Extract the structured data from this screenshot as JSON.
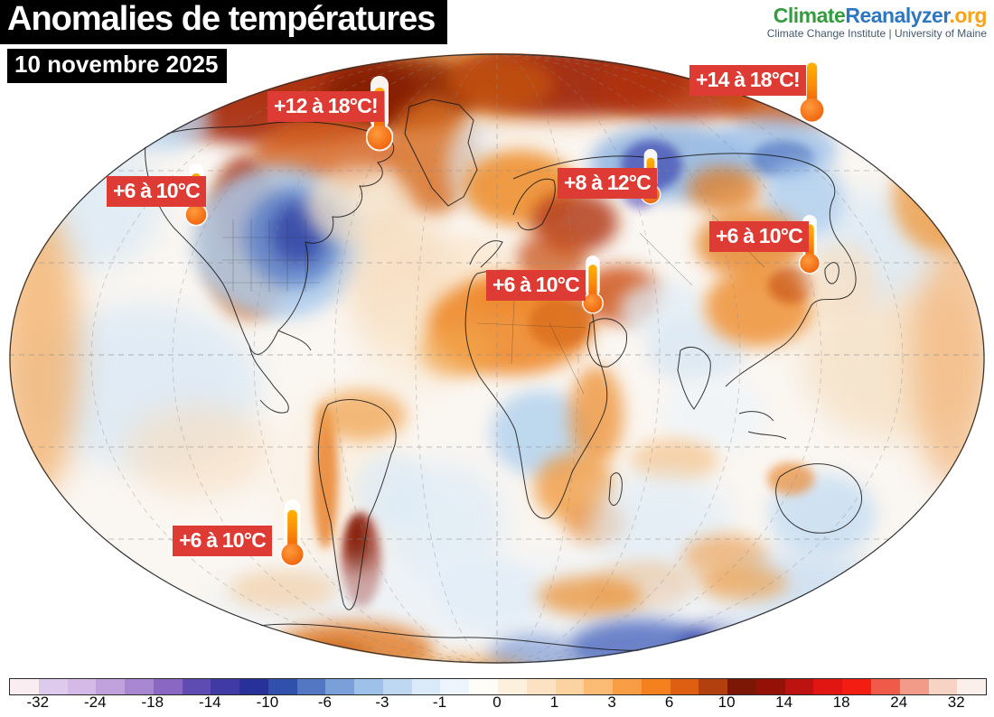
{
  "header": {
    "title": "Anomalies de températures",
    "date": "10 novembre 2025"
  },
  "logo": {
    "brand_climate": "Climate",
    "brand_reanalyzer": "Reanalyzer",
    "brand_org": ".org",
    "subtitle": "Climate Change Institute | University of Maine",
    "color_climate": "#359b3f",
    "color_reanalyzer": "#2d77c2",
    "color_org": "#f7a21b"
  },
  "map": {
    "badge_color": "#dd3b33",
    "callouts": [
      {
        "region": "north-america-arctic",
        "label": "+12 à 18°C!"
      },
      {
        "region": "northeast-siberia",
        "label": "+14 à 18°C!"
      },
      {
        "region": "western-north-america",
        "label": "+6 à 10°C"
      },
      {
        "region": "western-russia",
        "label": "+8 à 12°C"
      },
      {
        "region": "east-asia",
        "label": "+6 à 10°C"
      },
      {
        "region": "northeast-africa",
        "label": "+6 à 10°C"
      },
      {
        "region": "southern-ocean",
        "label": "+6 à 10°C"
      }
    ]
  },
  "colorbar": {
    "unit": "°C",
    "labels": [
      "-32",
      "-24",
      "-18",
      "-14",
      "-10",
      "-6",
      "-3",
      "-1",
      "0",
      "1",
      "3",
      "6",
      "10",
      "14",
      "18",
      "24",
      "32"
    ],
    "segments": [
      "#f9edf1",
      "#decaed",
      "#d5b9e6",
      "#c0a1db",
      "#a787d0",
      "#8a67c2",
      "#5f4cb3",
      "#3f3aa4",
      "#28309a",
      "#3050ac",
      "#5477c4",
      "#7b9fd9",
      "#9ec1ea",
      "#bfd8f2",
      "#dbeaf8",
      "#edf4fb",
      "#fdfcf7",
      "#fdf0dd",
      "#fce2c2",
      "#fbd3a0",
      "#fabc74",
      "#f89d44",
      "#f5801e",
      "#de5f11",
      "#b2400e",
      "#7c1605",
      "#951107",
      "#bd1310",
      "#e11511",
      "#f41d12",
      "#f05a49",
      "#f29b89",
      "#f7d3c6",
      "#fbefeb"
    ],
    "stippled": [
      1,
      3,
      4
    ]
  }
}
